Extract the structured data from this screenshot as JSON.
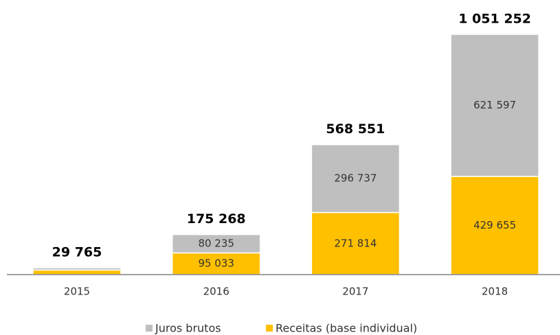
{
  "chart_data": {
    "type": "stacked-bar",
    "categories": [
      "2015",
      "2016",
      "2017",
      "2018"
    ],
    "series": [
      {
        "name": "Juros brutos",
        "color": "#bfbfbf",
        "values": [
          9765,
          80235,
          296737,
          621597
        ],
        "value_labels": [
          null,
          "80 235",
          "296 737",
          "621 597"
        ]
      },
      {
        "name": "Receitas (base individual)",
        "color": "#ffc000",
        "values": [
          20000,
          95033,
          271814,
          429655
        ],
        "value_labels": [
          null,
          "95 033",
          "271 814",
          "429 655"
        ]
      }
    ],
    "totals": [
      29765,
      175268,
      568551,
      1051252
    ],
    "total_labels": [
      "29 765",
      "175 268",
      "568 551",
      "1 051 252"
    ],
    "stack_order": "bottom-up: series 1 then series 0"
  }
}
